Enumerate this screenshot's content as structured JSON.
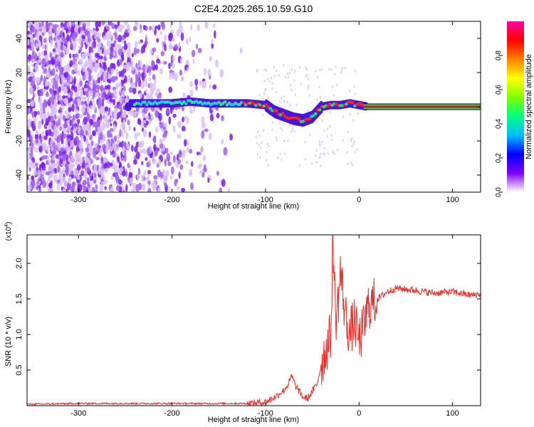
{
  "title": "C2E4.2025.265.10.59.G10",
  "chart_data": [
    {
      "type": "heatmap",
      "xlabel": "Height of straight line (km)",
      "ylabel": "Frequency (Hz)",
      "xlim": [
        -355,
        130
      ],
      "ylim": [
        -50,
        50
      ],
      "xticks": [
        -300,
        -200,
        -100,
        0,
        100
      ],
      "yticks": [
        -40,
        -20,
        0,
        20,
        40
      ],
      "colorbar": {
        "label": "Normalized spectral amplitude",
        "range": [
          0,
          1
        ],
        "ticks": [
          "0.0",
          "0.2",
          "0.4",
          "0.6",
          "0.8"
        ],
        "colors": [
          "#ffffff",
          "#8000ff",
          "#0000ff",
          "#00c0ff",
          "#00ff80",
          "#80ff00",
          "#ffff00",
          "#ff8000",
          "#ff0000",
          "#ff00a0"
        ]
      },
      "ridge": [
        {
          "x": -245,
          "y": 2
        },
        {
          "x": -220,
          "y": 2
        },
        {
          "x": -200,
          "y": 2
        },
        {
          "x": -180,
          "y": 3
        },
        {
          "x": -160,
          "y": 2
        },
        {
          "x": -140,
          "y": 2
        },
        {
          "x": -120,
          "y": 2
        },
        {
          "x": -100,
          "y": 1
        },
        {
          "x": -90,
          "y": -3
        },
        {
          "x": -80,
          "y": -5
        },
        {
          "x": -70,
          "y": -7
        },
        {
          "x": -60,
          "y": -8
        },
        {
          "x": -50,
          "y": -6
        },
        {
          "x": -45,
          "y": -3
        },
        {
          "x": -40,
          "y": 0
        },
        {
          "x": -30,
          "y": 1
        },
        {
          "x": -20,
          "y": 1
        },
        {
          "x": -10,
          "y": 2
        },
        {
          "x": 0,
          "y": 1
        },
        {
          "x": 10,
          "y": 0
        },
        {
          "x": 130,
          "y": 0
        }
      ],
      "noise_region_x": [
        -355,
        -125
      ],
      "line_x_start": 5
    },
    {
      "type": "line",
      "xlabel": "Height of straight line (km)",
      "ylabel": "SNR (10 * v/v)",
      "scale_label": "(x10^4)",
      "xlim": [
        -355,
        130
      ],
      "ylim": [
        0,
        2.4
      ],
      "xticks": [
        -300,
        -200,
        -100,
        0,
        100
      ],
      "yticks": [
        0.5,
        1.0,
        1.5,
        2.0
      ],
      "series": [
        {
          "color": "#e8302a",
          "x": [
            -355,
            -300,
            -200,
            -120,
            -100,
            -90,
            -80,
            -75,
            -72,
            -68,
            -60,
            -55,
            -50,
            -45,
            -40,
            -35,
            -30,
            -28,
            -25,
            -22,
            -20,
            -15,
            -10,
            -5,
            0,
            5,
            10,
            20,
            30,
            40,
            60,
            80,
            100,
            120,
            130
          ],
          "y": [
            0.02,
            0.03,
            0.03,
            0.03,
            0.05,
            0.12,
            0.22,
            0.32,
            0.42,
            0.28,
            0.12,
            0.1,
            0.2,
            0.3,
            0.6,
            0.8,
            1.0,
            2.4,
            1.2,
            1.5,
            1.9,
            1.3,
            1.0,
            1.2,
            0.9,
            1.1,
            1.4,
            1.5,
            1.6,
            1.65,
            1.62,
            1.58,
            1.6,
            1.55,
            1.57
          ]
        }
      ]
    }
  ]
}
